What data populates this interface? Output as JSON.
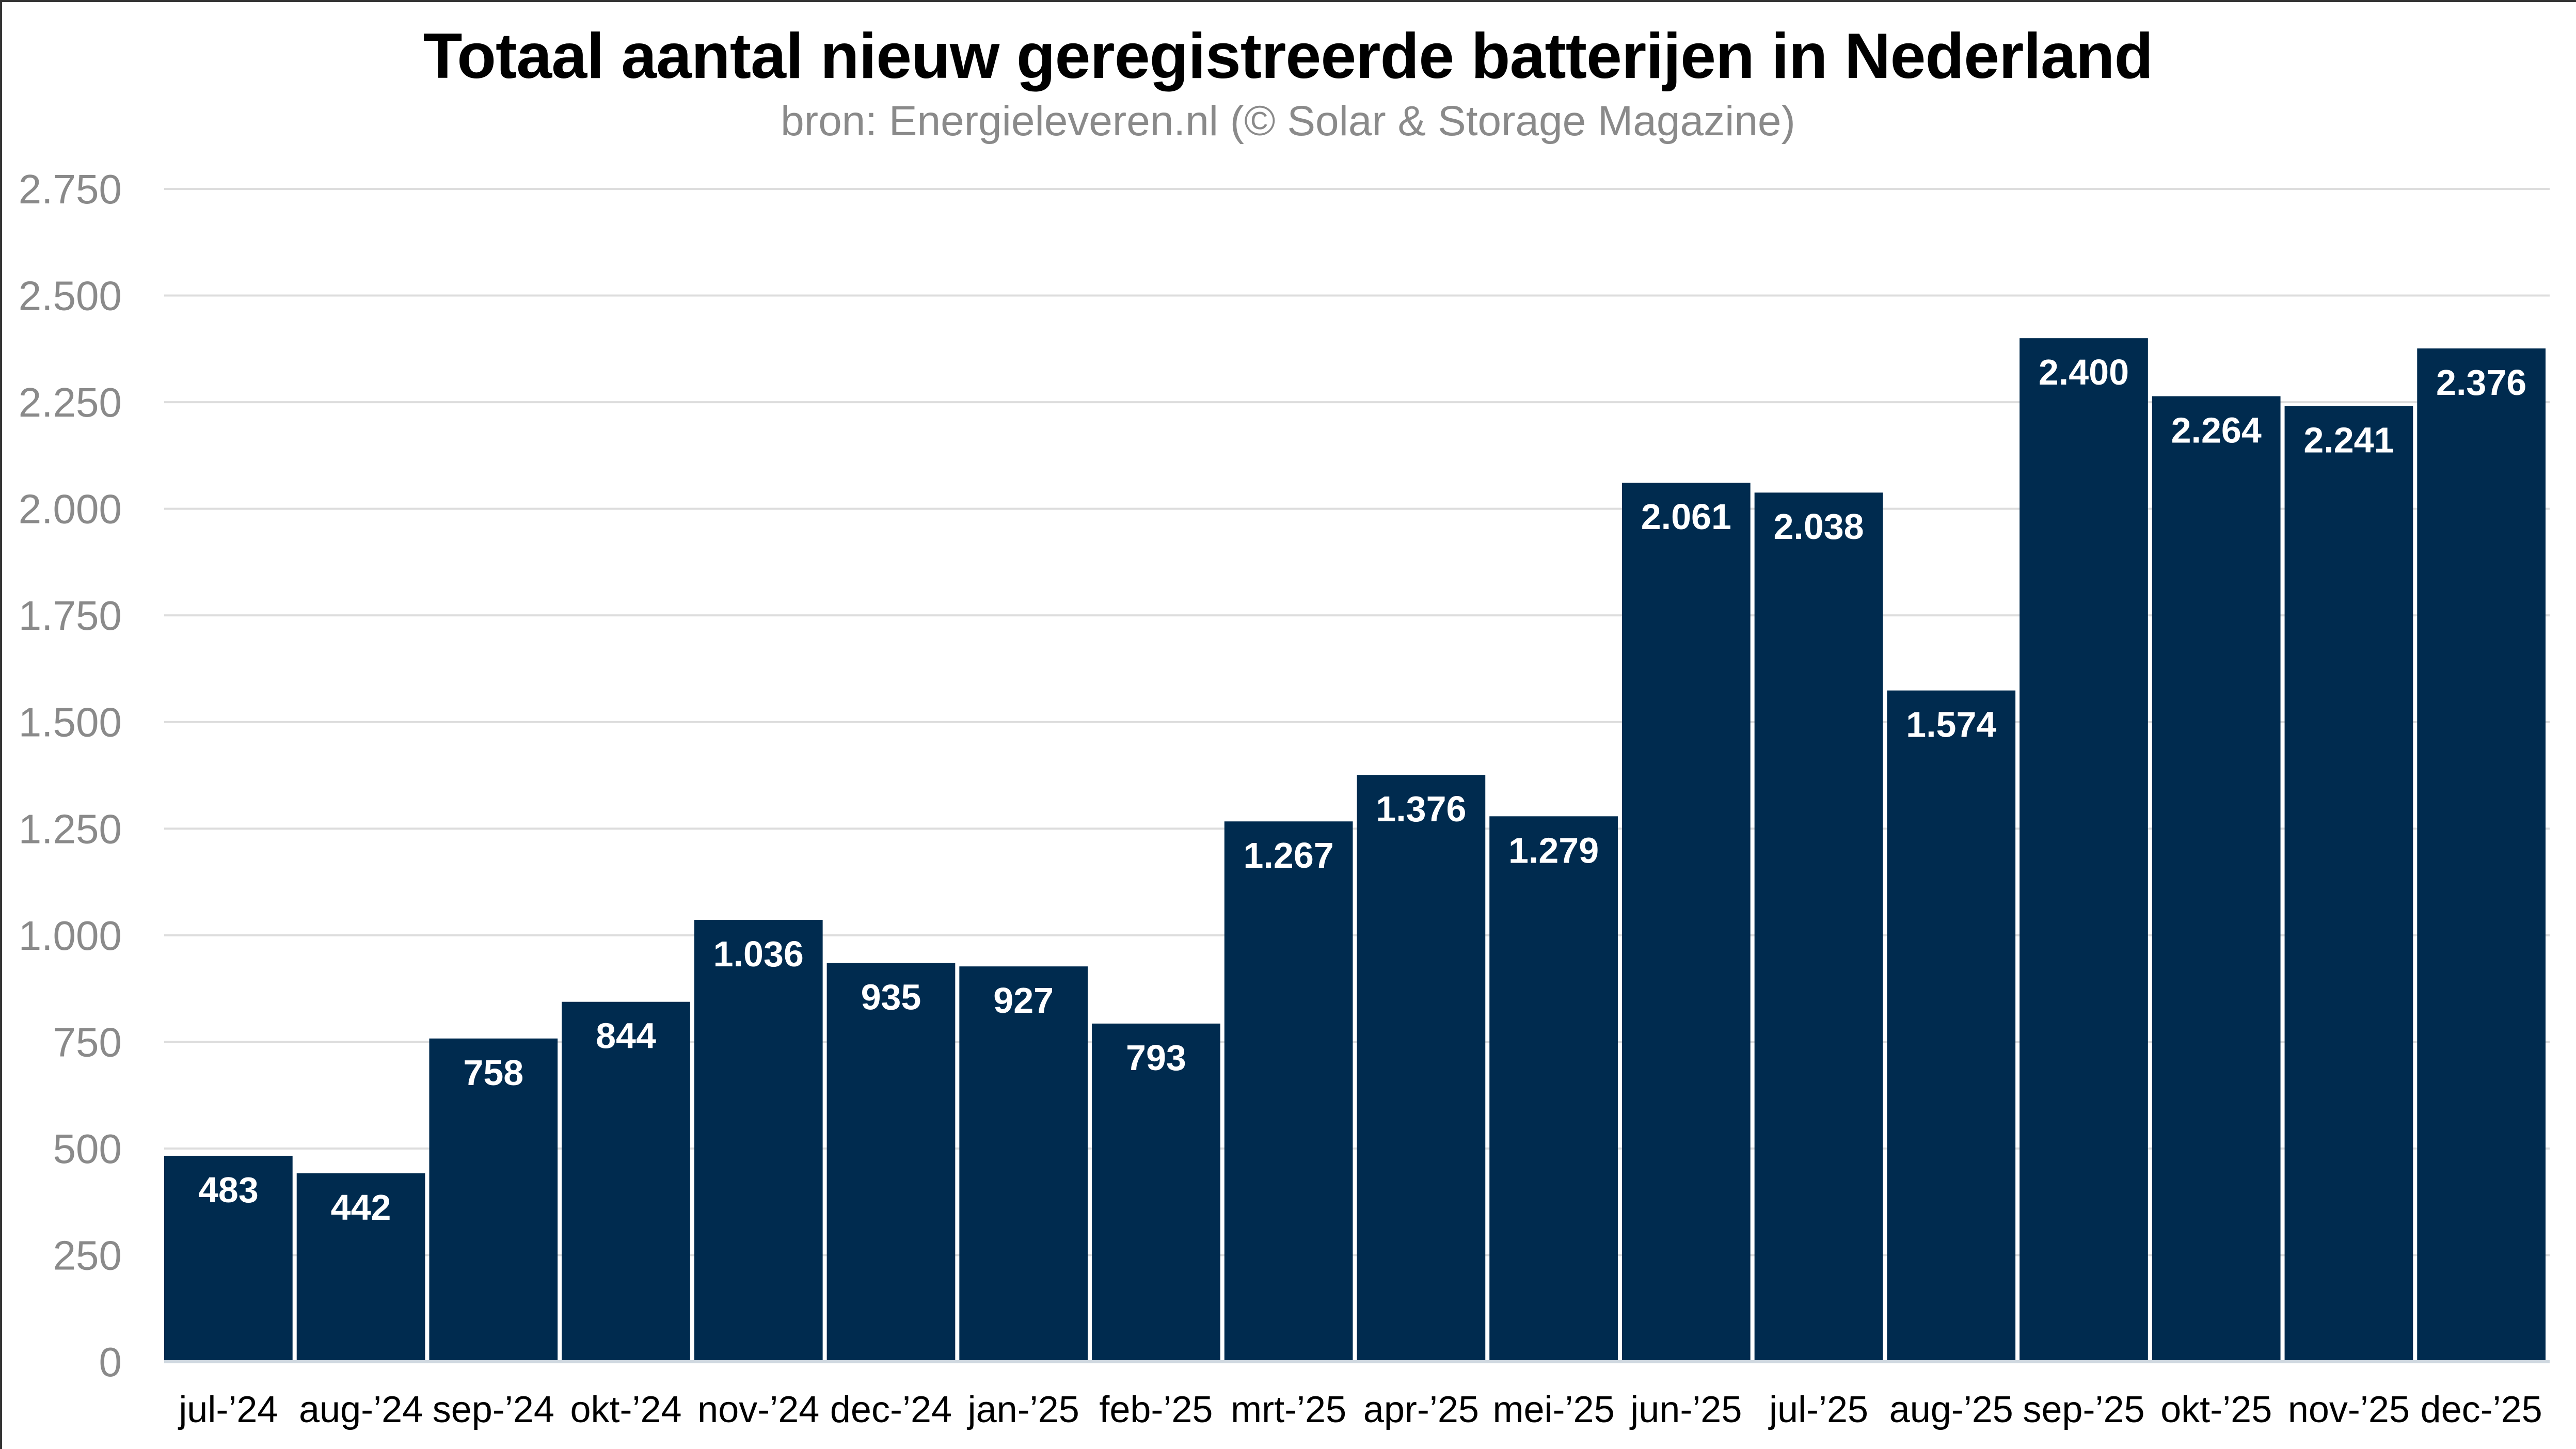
{
  "chart_data": {
    "type": "bar",
    "title": "Totaal aantal nieuw geregistreerde batterijen in Nederland",
    "subtitle": "bron: Energieleveren.nl (© Solar & Storage Magazine)",
    "xlabel": "",
    "ylabel": "",
    "categories": [
      "jul-’24",
      "aug-’24",
      "sep-’24",
      "okt-’24",
      "nov-’24",
      "dec-’24",
      "jan-’25",
      "feb-’25",
      "mrt-’25",
      "apr-’25",
      "mei-’25",
      "jun-’25",
      "jul-’25",
      "aug-’25",
      "sep-’25",
      "okt-’25",
      "nov-’25",
      "dec-’25"
    ],
    "values": [
      483,
      442,
      758,
      844,
      1036,
      935,
      927,
      793,
      1267,
      1376,
      1279,
      2061,
      2038,
      1574,
      2400,
      2264,
      2241,
      2376
    ],
    "value_labels": [
      "483",
      "442",
      "758",
      "844",
      "1.036",
      "935",
      "927",
      "793",
      "1.267",
      "1.376",
      "1.279",
      "2.061",
      "2.038",
      "1.574",
      "2.400",
      "2.264",
      "2.241",
      "2.376"
    ],
    "ylim": [
      0,
      2750
    ],
    "yticks": [
      0,
      250,
      500,
      750,
      1000,
      1250,
      1500,
      1750,
      2000,
      2250,
      2500,
      2750
    ],
    "ytick_labels": [
      "0",
      "250",
      "500",
      "750",
      "1.000",
      "1.250",
      "1.500",
      "1.750",
      "2.000",
      "2.250",
      "2.500",
      "2.750"
    ],
    "grid": true,
    "legend": "none",
    "colors": {
      "bar": "#002b4f",
      "grid": "#dddddd",
      "tick_text": "#8a8a8a",
      "label_text": "#ffffff"
    }
  }
}
